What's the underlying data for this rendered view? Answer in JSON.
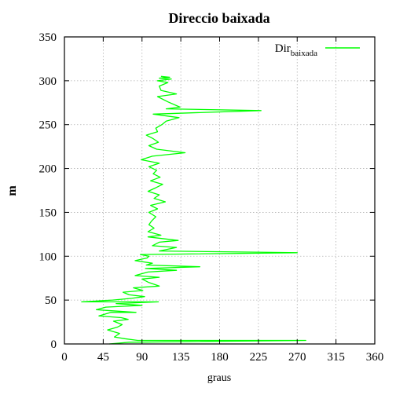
{
  "chart_data": {
    "type": "line",
    "title": "Direccio baixada",
    "xlabel": "graus",
    "ylabel": "m",
    "xlim": [
      0,
      360
    ],
    "ylim": [
      0,
      350
    ],
    "xticks": [
      0,
      45,
      90,
      135,
      180,
      225,
      270,
      315,
      360
    ],
    "yticks": [
      0,
      50,
      100,
      150,
      200,
      250,
      300,
      350
    ],
    "grid": true,
    "legend_position": "top-right",
    "series": [
      {
        "name": "Dir",
        "name_sub": "baixada",
        "color": "#00ff00",
        "points": [
          [
            52,
            0
          ],
          [
            75,
            2
          ],
          [
            280,
            4
          ],
          [
            85,
            4
          ],
          [
            70,
            6
          ],
          [
            58,
            8
          ],
          [
            64,
            12
          ],
          [
            50,
            16
          ],
          [
            61,
            19
          ],
          [
            67,
            22
          ],
          [
            57,
            26
          ],
          [
            74,
            28
          ],
          [
            66,
            30
          ],
          [
            40,
            32
          ],
          [
            54,
            36
          ],
          [
            83,
            36
          ],
          [
            37,
            39
          ],
          [
            48,
            42
          ],
          [
            90,
            44
          ],
          [
            60,
            46
          ],
          [
            109,
            48
          ],
          [
            20,
            48
          ],
          [
            56,
            50
          ],
          [
            78,
            52
          ],
          [
            93,
            54
          ],
          [
            75,
            56
          ],
          [
            68,
            59
          ],
          [
            91,
            61
          ],
          [
            80,
            64
          ],
          [
            110,
            66
          ],
          [
            98,
            70
          ],
          [
            90,
            74
          ],
          [
            110,
            76
          ],
          [
            82,
            78
          ],
          [
            97,
            82
          ],
          [
            130,
            84
          ],
          [
            94,
            86
          ],
          [
            157,
            88
          ],
          [
            95,
            90
          ],
          [
            102,
            92
          ],
          [
            82,
            95
          ],
          [
            96,
            98
          ],
          [
            98,
            100
          ],
          [
            88,
            102
          ],
          [
            270,
            104
          ],
          [
            110,
            106
          ],
          [
            130,
            110
          ],
          [
            102,
            112
          ],
          [
            110,
            116
          ],
          [
            132,
            118
          ],
          [
            97,
            122
          ],
          [
            112,
            124
          ],
          [
            97,
            128
          ],
          [
            104,
            132
          ],
          [
            98,
            136
          ],
          [
            101,
            140
          ],
          [
            106,
            145
          ],
          [
            98,
            150
          ],
          [
            108,
            154
          ],
          [
            100,
            158
          ],
          [
            117,
            162
          ],
          [
            104,
            166
          ],
          [
            110,
            170
          ],
          [
            97,
            174
          ],
          [
            106,
            178
          ],
          [
            114,
            182
          ],
          [
            100,
            186
          ],
          [
            111,
            190
          ],
          [
            103,
            194
          ],
          [
            107,
            198
          ],
          [
            98,
            202
          ],
          [
            110,
            206
          ],
          [
            89,
            210
          ],
          [
            102,
            214
          ],
          [
            140,
            218
          ],
          [
            107,
            222
          ],
          [
            98,
            226
          ],
          [
            109,
            230
          ],
          [
            103,
            234
          ],
          [
            95,
            238
          ],
          [
            108,
            242
          ],
          [
            106,
            246
          ],
          [
            113,
            250
          ],
          [
            118,
            254
          ],
          [
            133,
            258
          ],
          [
            103,
            262
          ],
          [
            228,
            266
          ],
          [
            118,
            268
          ],
          [
            134,
            270
          ],
          [
            120,
            276
          ],
          [
            108,
            282
          ],
          [
            130,
            285
          ],
          [
            112,
            289
          ],
          [
            110,
            294
          ],
          [
            120,
            298
          ],
          [
            108,
            300
          ],
          [
            124,
            302
          ],
          [
            110,
            303
          ],
          [
            122,
            304
          ],
          [
            112,
            305
          ]
        ]
      }
    ]
  }
}
